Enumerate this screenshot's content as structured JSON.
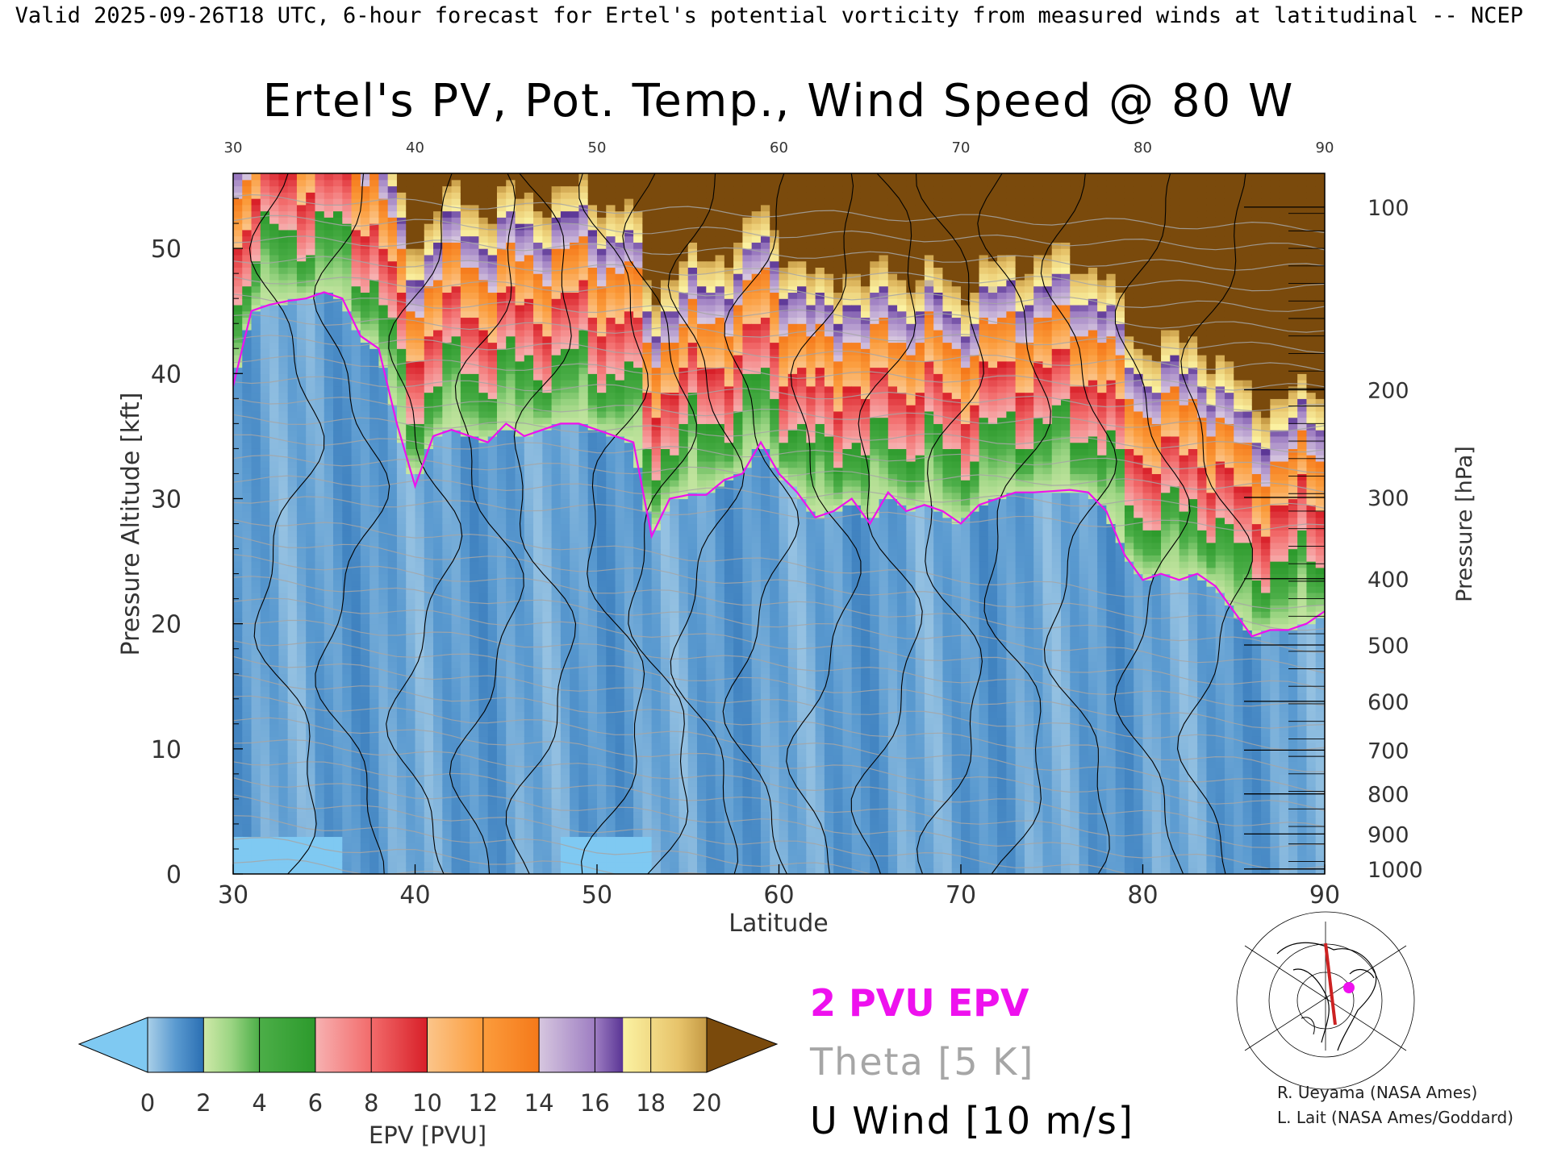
{
  "header": {
    "valid_line": "Valid 2025-09-26T18 UTC, 6-hour forecast for Ertel's potential vorticity from measured winds at latitudinal -- NCEP"
  },
  "chart_data": {
    "type": "heatmap",
    "title": "Ertel's PV, Pot. Temp., Wind Speed @ 80 W",
    "xlabel": "Latitude",
    "ylabel": "Pressure Altitude [kft]",
    "ylabel_right": "Pressure [hPa]",
    "xlim": [
      30,
      90
    ],
    "ylim": [
      0,
      56
    ],
    "x_ticks": [
      "30",
      "40",
      "50",
      "60",
      "70",
      "80",
      "90"
    ],
    "x_ticks_top": [
      "30",
      "40",
      "50",
      "60",
      "70",
      "80",
      "90"
    ],
    "y_ticks": [
      "0",
      "10",
      "20",
      "30",
      "40",
      "50"
    ],
    "pressure_ticks": [
      {
        "label": "1000",
        "alt_kft": 0.4
      },
      {
        "label": "900",
        "alt_kft": 3.2
      },
      {
        "label": "800",
        "alt_kft": 6.4
      },
      {
        "label": "700",
        "alt_kft": 9.9
      },
      {
        "label": "600",
        "alt_kft": 13.8
      },
      {
        "label": "500",
        "alt_kft": 18.3
      },
      {
        "label": "400",
        "alt_kft": 23.6
      },
      {
        "label": "300",
        "alt_kft": 30.1
      },
      {
        "label": "200",
        "alt_kft": 38.7
      },
      {
        "label": "100",
        "alt_kft": 53.3
      }
    ],
    "tropopause_2pvu_kft": {
      "lat": [
        30,
        31,
        32,
        33,
        34,
        35,
        36,
        37,
        38,
        39,
        40,
        41,
        42,
        43,
        44,
        45,
        46,
        47,
        48,
        49,
        50,
        51,
        52,
        53,
        54,
        55,
        56,
        57,
        58,
        59,
        60,
        61,
        62,
        63,
        64,
        65,
        66,
        67,
        68,
        69,
        70,
        71,
        72,
        73,
        74,
        75,
        76,
        77,
        78,
        79,
        80,
        81,
        82,
        83,
        84,
        85,
        86,
        87,
        88,
        89,
        90
      ],
      "alt": [
        39,
        45,
        45.5,
        45.8,
        46,
        46.5,
        46,
        43,
        42,
        36,
        31,
        35,
        35.5,
        35,
        34.5,
        36,
        35,
        35.5,
        36,
        36,
        35.5,
        35,
        34.5,
        27,
        30,
        30.3,
        30.3,
        31.5,
        32,
        34.5,
        32,
        30.5,
        28.5,
        29,
        30,
        28,
        30.5,
        29,
        29.5,
        29,
        28,
        29.5,
        30,
        30.5,
        30.5,
        30.6,
        30.7,
        30.5,
        29,
        25.5,
        23.5,
        24,
        23.5,
        24,
        23,
        21,
        19,
        19.5,
        19.5,
        20,
        21
      ]
    },
    "colorbar": {
      "label": "EPV [PVU]",
      "ticks": [
        "0",
        "2",
        "4",
        "6",
        "8",
        "10",
        "12",
        "14",
        "16",
        "18",
        "20"
      ],
      "range": [
        0,
        20
      ],
      "extend": "both",
      "under_color": "#7fc9f2",
      "over_color": "#7a4a0c",
      "stops": [
        {
          "v": 0,
          "c": "#a9cfe8"
        },
        {
          "v": 1,
          "c": "#5a9ad0"
        },
        {
          "v": 2,
          "c": "#2b6fb3"
        },
        {
          "v": 2.01,
          "c": "#cfe9a8"
        },
        {
          "v": 3,
          "c": "#9ad482"
        },
        {
          "v": 4,
          "c": "#4cae48"
        },
        {
          "v": 6,
          "c": "#2c9a2c"
        },
        {
          "v": 6.01,
          "c": "#f7b1b1"
        },
        {
          "v": 8,
          "c": "#f26b6b"
        },
        {
          "v": 10,
          "c": "#d81f28"
        },
        {
          "v": 10.01,
          "c": "#fbc58a"
        },
        {
          "v": 12,
          "c": "#fb9c3c"
        },
        {
          "v": 14,
          "c": "#f5791a"
        },
        {
          "v": 14.01,
          "c": "#d6c6df"
        },
        {
          "v": 16,
          "c": "#9e7ec2"
        },
        {
          "v": 17,
          "c": "#5a3595"
        },
        {
          "v": 17.01,
          "c": "#fbf2a2"
        },
        {
          "v": 19,
          "c": "#e7c36a"
        },
        {
          "v": 20,
          "c": "#c59a45"
        }
      ]
    }
  },
  "legend": {
    "pvu": "2 PVU EPV",
    "theta": "Theta [5 K]",
    "wind": "U Wind [10 m/s]",
    "pvu_color": "#ee11ee",
    "theta_color": "#a6a6a6",
    "wind_color": "#000000"
  },
  "credits": {
    "line1": "R. Ueyama (NASA Ames)",
    "line2": "L. Lait (NASA Ames/Goddard)"
  },
  "map_inset": {
    "icon": "globe-map-icon",
    "track_color": "#cc2222",
    "marker_color": "#ee11ee"
  }
}
